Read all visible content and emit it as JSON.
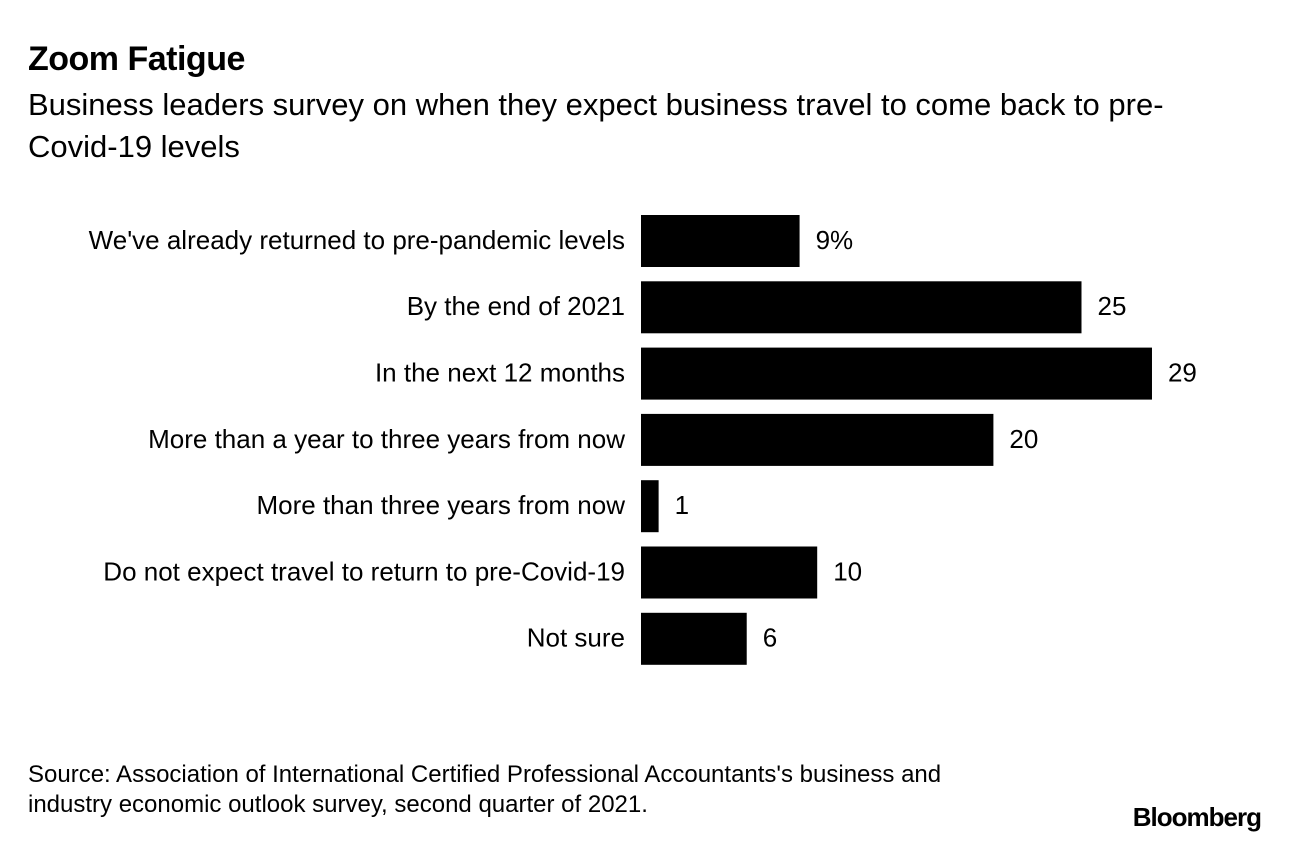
{
  "chart_data": {
    "type": "bar",
    "orientation": "horizontal",
    "title": "Zoom Fatigue",
    "subtitle": "Business leaders survey on when they expect business travel to come back to pre-Covid-19 levels",
    "categories": [
      "We've already returned to pre-pandemic levels",
      "By the end of 2021",
      "In the next 12 months",
      "More than a year to three years from now",
      "More than three years from now",
      "Do not expect travel to return to pre-Covid-19",
      "Not sure"
    ],
    "values": [
      9,
      25,
      29,
      20,
      1,
      10,
      6
    ],
    "value_labels": [
      "9%",
      "25",
      "29",
      "20",
      "1",
      "10",
      "6"
    ],
    "color": "#000000",
    "source": "Source: Association of International Certified Professional Accountants's business and industry economic outlook survey, second quarter of 2021.",
    "logo": "Bloomberg"
  }
}
